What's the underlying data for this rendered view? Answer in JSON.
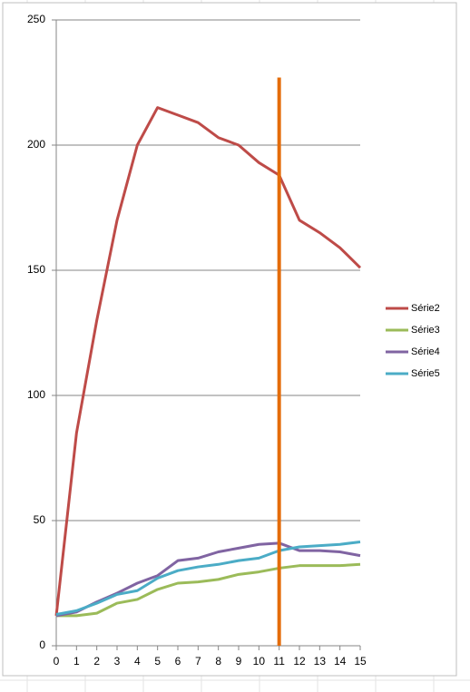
{
  "chart_data": {
    "type": "line",
    "x": [
      0,
      1,
      2,
      3,
      4,
      5,
      6,
      7,
      8,
      9,
      10,
      11,
      12,
      13,
      14,
      15
    ],
    "series": [
      {
        "name": "Série2",
        "color": "#be4b48",
        "values": [
          12,
          85,
          130,
          170,
          200,
          215,
          212,
          209,
          203,
          200,
          193,
          188,
          170,
          165,
          159,
          151
        ]
      },
      {
        "name": "Série3",
        "color": "#9bbb59",
        "values": [
          12,
          12,
          13,
          17,
          18.5,
          22.5,
          25,
          25.5,
          26.5,
          28.5,
          29.5,
          31,
          32,
          32,
          32,
          32.5
        ]
      },
      {
        "name": "Série4",
        "color": "#8064a2",
        "values": [
          12,
          13.5,
          17.5,
          21,
          25,
          28,
          34,
          35,
          37.5,
          39,
          40.5,
          41,
          38,
          38,
          37.5,
          36
        ]
      },
      {
        "name": "Série5",
        "color": "#4bacc6",
        "values": [
          12.5,
          14,
          17,
          20.5,
          22,
          27,
          30,
          31.5,
          32.5,
          34,
          35,
          38,
          39.5,
          40,
          40.5,
          41.5
        ]
      },
      {
        "color": "#e46c0a",
        "x": [
          11,
          11
        ],
        "values": [
          0,
          227
        ]
      }
    ],
    "xlim": [
      0,
      15
    ],
    "xticks": [
      0,
      1,
      2,
      3,
      4,
      5,
      6,
      7,
      8,
      9,
      10,
      11,
      12,
      13,
      14,
      15
    ],
    "ylim": [
      0,
      250
    ],
    "yticks": [
      0,
      50,
      100,
      150,
      200,
      250
    ],
    "grid": true,
    "legend": "right"
  }
}
